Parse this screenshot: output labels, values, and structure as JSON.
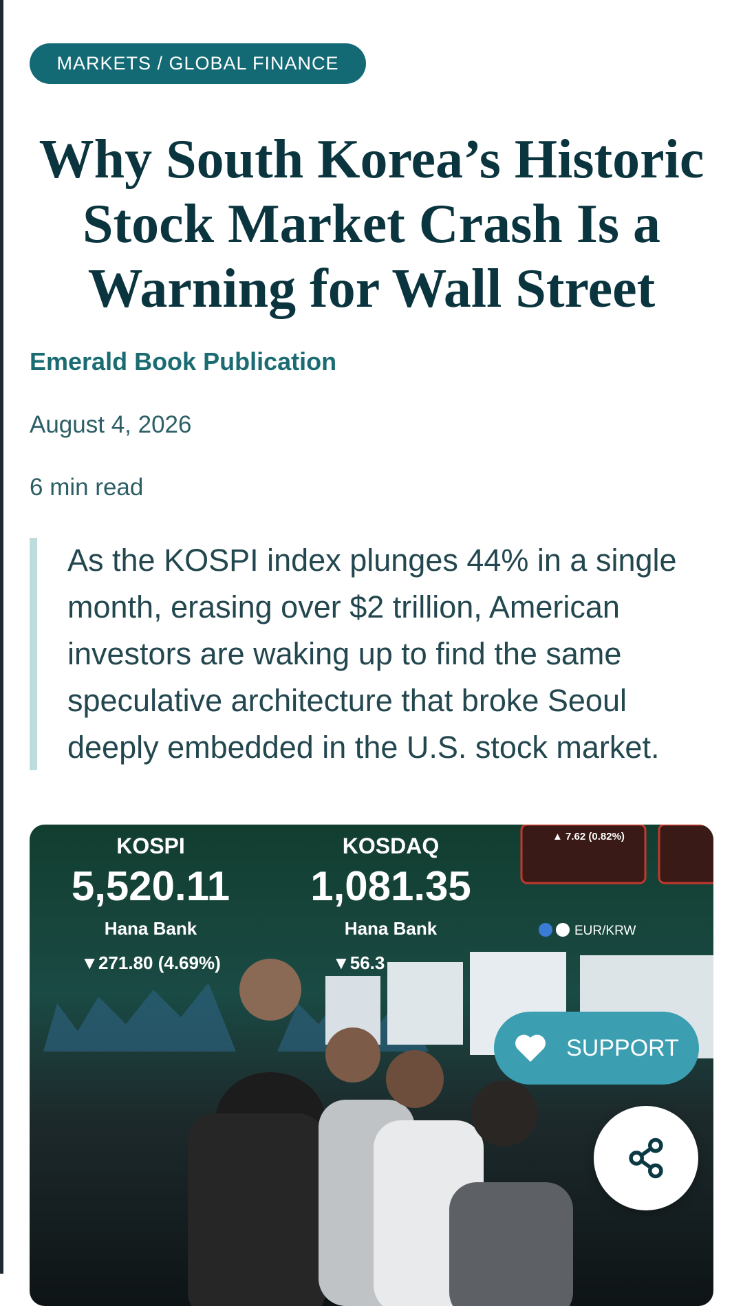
{
  "category": "MARKETS / GLOBAL FINANCE",
  "title_lines": [
    "Why South Korea’s Historic",
    "Stock Market Crash Is a",
    "Warning for Wall Street"
  ],
  "author": "Emerald Book Publication",
  "date": "August 4, 2026",
  "read_time": "6 min read",
  "quote_lines": [
    "As the KOSPI index plunges 44% in a single",
    "month, erasing over $2 trillion, American",
    "investors are waking up to find the same",
    "speculative architecture that broke Seoul",
    "deeply embedded in the U.S. stock market."
  ],
  "image": {
    "kospi_label": "KOSPI",
    "kospi_value": "5,520.11",
    "kospi_bank": "Hana Bank",
    "kospi_change": "▼271.80 (4.69%)",
    "kosdaq_label": "KOSDAQ",
    "kosdaq_value": "1,081.35",
    "kosdaq_bank": "Hana Bank",
    "kosdaq_change": "▼56.3",
    "top_change": "▲ 7.62 (0.82%)",
    "fx_label": "EUR/KRW"
  },
  "support_button": "SUPPORT"
}
